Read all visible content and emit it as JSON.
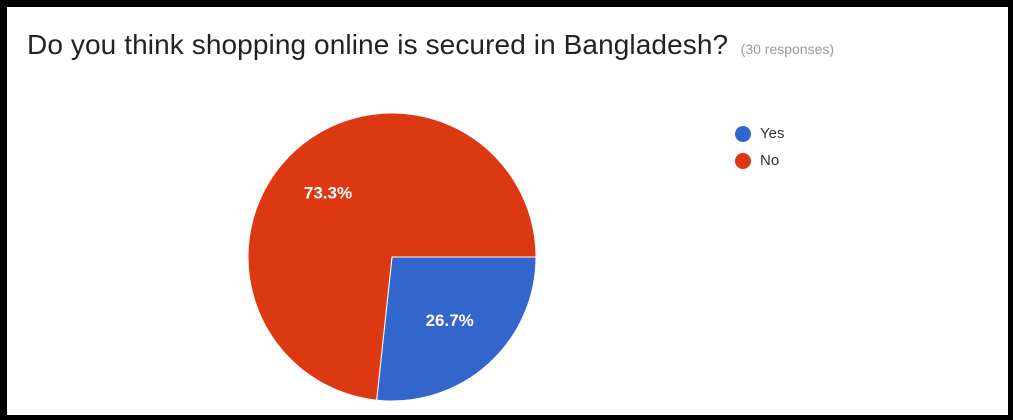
{
  "header": {
    "title": "Do you think shopping online is secured in Bangladesh?",
    "responses": "(30 responses)"
  },
  "chart_data": {
    "type": "pie",
    "title": "Do you think shopping online is secured in Bangladesh?",
    "subtitle": "(30 responses)",
    "legend_position": "top-right",
    "slices": [
      {
        "label": "Yes",
        "value": 26.7,
        "display": "26.7%",
        "color": "#3366cc"
      },
      {
        "label": "No",
        "value": 73.3,
        "display": "73.3%",
        "color": "#dc3912"
      }
    ]
  }
}
